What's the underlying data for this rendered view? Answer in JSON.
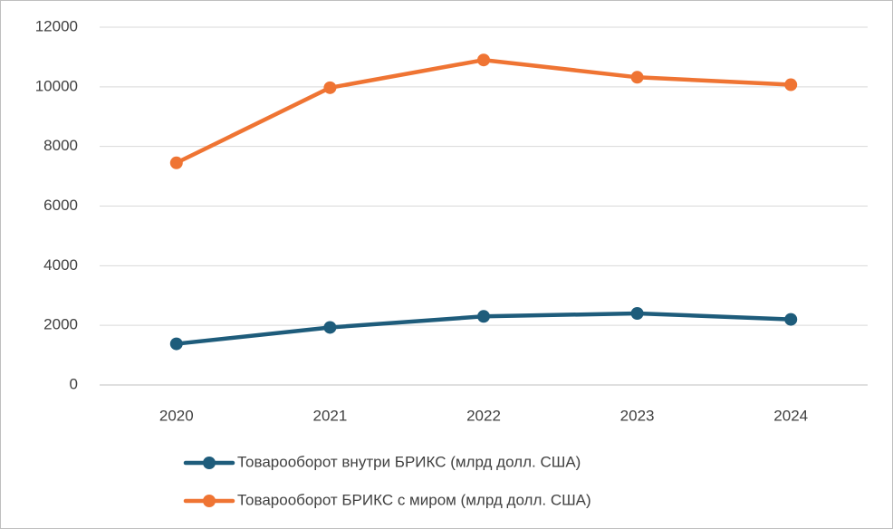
{
  "chart_data": {
    "type": "line",
    "categories": [
      "2020",
      "2021",
      "2022",
      "2023",
      "2024"
    ],
    "series": [
      {
        "name": "Товарооборот внутри БРИКС (млрд долл. США)",
        "color": "#1e5c7b",
        "values": [
          1380,
          1930,
          2300,
          2400,
          2200
        ]
      },
      {
        "name": "Товарооборот БРИКС с миром (млрд долл. США)",
        "color": "#ef7433",
        "values": [
          7450,
          9970,
          10900,
          10320,
          10070
        ]
      }
    ],
    "ylim": [
      0,
      12000
    ],
    "yticks": [
      0,
      2000,
      4000,
      6000,
      8000,
      10000,
      12000
    ],
    "grid": true,
    "legend": "bottom"
  }
}
